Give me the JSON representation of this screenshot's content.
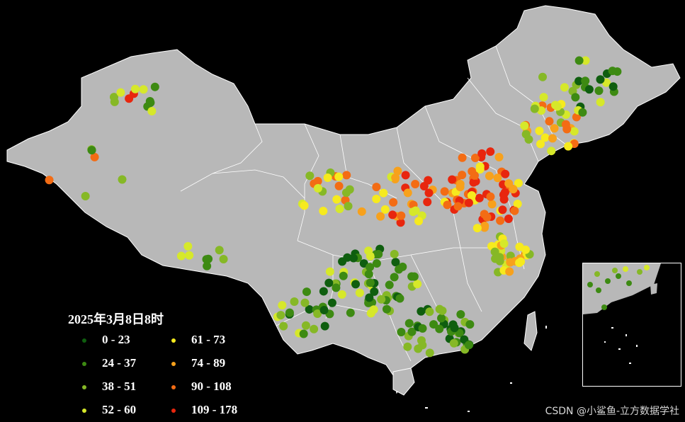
{
  "map": {
    "title": "2025年3月8日8时",
    "land_color": "#b8b8b8",
    "border_color": "#ffffff",
    "background": "#000000",
    "legend": [
      {
        "label": "0 - 23",
        "color": "#0f5e0f"
      },
      {
        "label": "24 - 37",
        "color": "#3d8a12"
      },
      {
        "label": "38 - 51",
        "color": "#86b826"
      },
      {
        "label": "52 - 60",
        "color": "#d6e82a"
      },
      {
        "label": "61 - 73",
        "color": "#f6ea1e"
      },
      {
        "label": "74 - 89",
        "color": "#f7a11c"
      },
      {
        "label": "90 - 108",
        "color": "#f36c14"
      },
      {
        "label": "109 - 178",
        "color": "#e8260e"
      }
    ],
    "watermark": "CSDN @小鲨鱼-立方数据学社"
  }
}
